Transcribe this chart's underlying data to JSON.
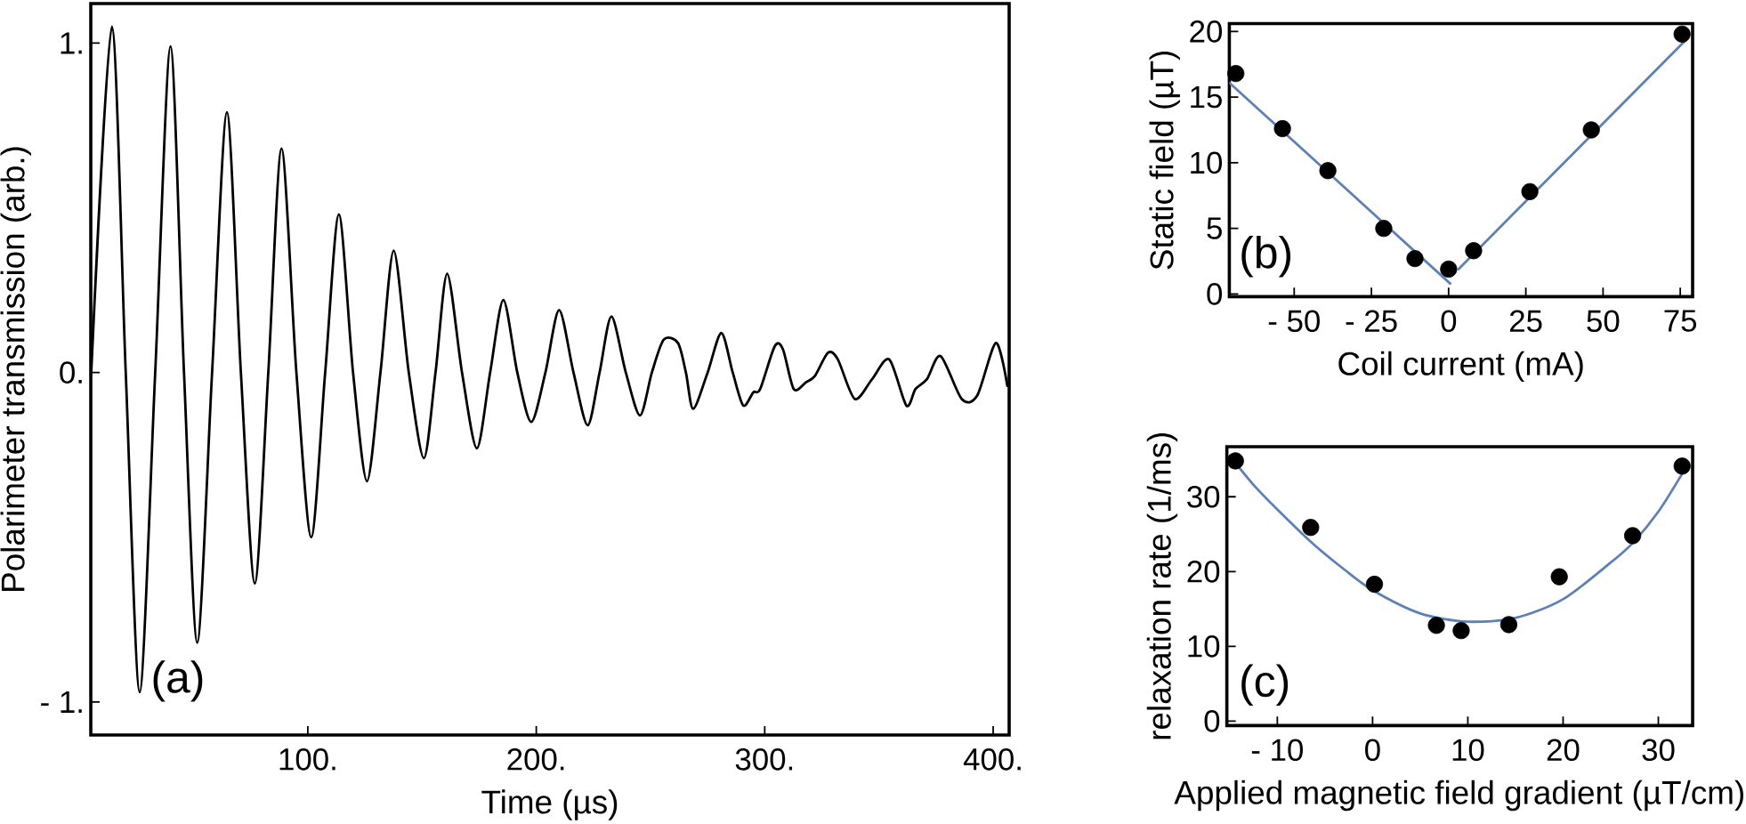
{
  "chart_data": [
    {
      "type": "line",
      "xlabel": "Time (µs)",
      "ylabel": "Polarimeter transmission (arb.)",
      "annotations": [
        "(a)"
      ],
      "xlim": [
        5,
        407
      ],
      "ylim": [
        -1.1,
        1.12
      ],
      "xticks": [
        {
          "value": 100,
          "label": "100."
        },
        {
          "value": 200,
          "label": "200."
        },
        {
          "value": 300,
          "label": "300."
        },
        {
          "value": 400,
          "label": "400."
        }
      ],
      "yticks": [
        {
          "value": -1,
          "label": "- 1."
        },
        {
          "value": 0,
          "label": "0."
        },
        {
          "value": 1,
          "label": "1."
        }
      ],
      "series": [
        {
          "color": "#000000",
          "x": [
            5.2,
            14.2,
            20.3,
            26.4,
            33.2,
            39.9,
            45.8,
            51.6,
            58.1,
            64.6,
            70.7,
            76.8,
            82.7,
            88.5,
            95.0,
            101.5,
            107.6,
            113.6,
            119.8,
            125.9,
            131.8,
            137.6,
            144.2,
            150.8,
            155.9,
            161.0,
            167.5,
            174.0,
            179.8,
            185.6,
            191.7,
            197.8,
            204.0,
            210.0,
            216.3,
            222.5,
            227.7,
            232.9,
            239.2,
            245.4,
            250.6,
            255.8,
            262.0,
            265.5,
            268.7,
            275.0,
            281.0,
            286.0,
            290.6,
            295.0,
            298.0,
            304.4,
            308.0,
            312.7,
            318.0,
            322.0,
            327.7,
            332.0,
            339.4,
            347.0,
            354.5,
            362.0,
            366.0,
            371.0,
            377.0,
            386.2,
            393.0,
            401.2,
            406.2
          ],
          "values": [
            0.0,
            1.05,
            0.0,
            -0.97,
            0.0,
            0.99,
            0.0,
            -0.82,
            0.0,
            0.79,
            0.0,
            -0.64,
            0.0,
            0.68,
            0.0,
            -0.5,
            0.0,
            0.48,
            0.0,
            -0.33,
            0.0,
            0.37,
            0.0,
            -0.26,
            0.0,
            0.3,
            0.0,
            -0.23,
            0.0,
            0.22,
            0.0,
            -0.15,
            0.0,
            0.19,
            0.0,
            -0.16,
            0.0,
            0.17,
            0.0,
            -0.13,
            0.0,
            0.1,
            0.09,
            0.0,
            -0.11,
            0.0,
            0.12,
            0.0,
            -0.1,
            -0.06,
            -0.05,
            0.08,
            0.07,
            -0.05,
            -0.03,
            -0.01,
            0.06,
            0.04,
            -0.08,
            -0.02,
            0.04,
            -0.1,
            -0.05,
            -0.02,
            0.05,
            -0.08,
            -0.07,
            0.09,
            -0.04
          ]
        }
      ]
    },
    {
      "type": "scatter",
      "xlabel": "Coil current (mA)",
      "ylabel": "Static field (µT)",
      "annotations": [
        "(b)"
      ],
      "xlim": [
        -71,
        79
      ],
      "ylim": [
        -0.2,
        20.6
      ],
      "xticks": [
        {
          "value": -50,
          "label": "- 50"
        },
        {
          "value": -25,
          "label": "- 25"
        },
        0,
        25,
        50,
        75
      ],
      "yticks": [
        0,
        5,
        10,
        15,
        20
      ],
      "marker": "circle",
      "series": [
        {
          "color": "#000000",
          "x": [
            -68.9,
            -53.8,
            -39.1,
            -21.0,
            -10.9,
            0.0,
            8.1,
            26.3,
            46.2,
            75.6
          ],
          "values": [
            16.8,
            12.6,
            9.4,
            5.0,
            2.7,
            1.9,
            3.3,
            7.8,
            12.5,
            19.8
          ]
        },
        {
          "type": "line",
          "marker": "none",
          "color": "#5e81b5",
          "x": [
            -71,
            0.5
          ],
          "values": [
            16.1,
            0.8
          ]
        },
        {
          "type": "line",
          "marker": "none",
          "color": "#5e81b5",
          "x": [
            3.2,
            77
          ],
          "values": [
            1.9,
            19.4
          ]
        }
      ]
    },
    {
      "type": "scatter",
      "xlabel": "Applied magnetic field gradient (µT/cm)",
      "ylabel": "relaxation rate (1/ms)",
      "annotations": [
        "(c)"
      ],
      "xlim": [
        -15.3,
        33.6
      ],
      "ylim": [
        -0.6,
        36.7
      ],
      "xticks": [
        {
          "value": -10,
          "label": "- 10"
        },
        0,
        10,
        20,
        30
      ],
      "yticks": [
        0,
        10,
        20,
        30
      ],
      "marker": "circle",
      "series": [
        {
          "color": "#000000",
          "x": [
            -14.4,
            -6.5,
            0.2,
            6.7,
            9.3,
            14.3,
            19.6,
            27.3,
            32.5
          ],
          "values": [
            34.8,
            25.9,
            18.3,
            12.8,
            12.1,
            12.9,
            19.3,
            24.8,
            34.1
          ]
        },
        {
          "type": "line",
          "marker": "none",
          "color": "#5e81b5",
          "x": [
            -15,
            -12.5,
            -10,
            -6.5,
            -3,
            0,
            5,
            10,
            15,
            20,
            25,
            27.3,
            30,
            32.7
          ],
          "values": [
            35.5,
            31.6,
            28.3,
            24.0,
            20.3,
            17.5,
            14.4,
            13.3,
            13.8,
            16.3,
            21.2,
            23.8,
            28.0,
            33.5
          ]
        }
      ]
    }
  ]
}
